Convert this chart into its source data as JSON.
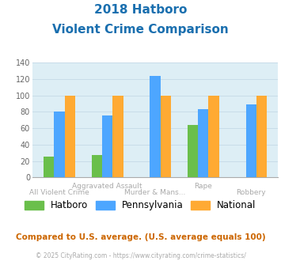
{
  "title_line1": "2018 Hatboro",
  "title_line2": "Violent Crime Comparison",
  "title_color": "#1a6faf",
  "categories": [
    "All Violent Crime",
    "Aggravated Assault",
    "Murder & Mans...",
    "Rape",
    "Robbery"
  ],
  "label_top": {
    "1": "Aggravated Assault",
    "3": "Rape"
  },
  "label_bot": {
    "0": "All Violent Crime",
    "2": "Murder & Mans...",
    "4": "Robbery"
  },
  "series": {
    "Hatboro": {
      "values": [
        25,
        27,
        null,
        64,
        null
      ],
      "color": "#6abf4b"
    },
    "Pennsylvania": {
      "values": [
        80,
        76,
        124,
        83,
        89
      ],
      "color": "#4da6ff"
    },
    "National": {
      "values": [
        100,
        100,
        100,
        100,
        100
      ],
      "color": "#ffaa33"
    }
  },
  "ylim": [
    0,
    140
  ],
  "yticks": [
    0,
    20,
    40,
    60,
    80,
    100,
    120,
    140
  ],
  "grid_color": "#c8dce8",
  "bg_color": "#ddeef5",
  "footer_text": "Compared to U.S. average. (U.S. average equals 100)",
  "footer_color": "#cc6600",
  "copyright_text": "© 2025 CityRating.com - https://www.cityrating.com/crime-statistics/",
  "copyright_color": "#aaaaaa",
  "label_color": "#aaaaaa",
  "bar_width": 0.22
}
